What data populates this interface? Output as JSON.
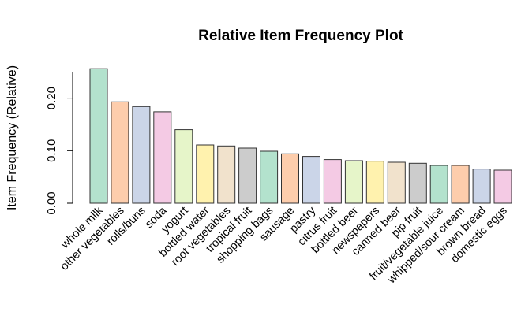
{
  "chart_data": {
    "type": "bar",
    "title": "Relative Item Frequency Plot",
    "xlabel": "",
    "ylabel": "Item Frequency (Relative)",
    "ylim": [
      0,
      0.25
    ],
    "yticks": [
      0.0,
      0.1,
      0.2
    ],
    "ytick_labels": [
      "0.00",
      "0.10",
      "0.20"
    ],
    "grid": false,
    "legend": "none",
    "categories": [
      "whole milk",
      "other vegetables",
      "rolls/buns",
      "soda",
      "yogurt",
      "bottled water",
      "root vegetables",
      "tropical fruit",
      "shopping bags",
      "sausage",
      "pastry",
      "citrus fruit",
      "bottled beer",
      "newspapers",
      "canned beer",
      "pip fruit",
      "fruit/vegetable juice",
      "whipped/sour cream",
      "brown bread",
      "domestic eggs"
    ],
    "values": [
      0.256,
      0.193,
      0.184,
      0.174,
      0.14,
      0.111,
      0.109,
      0.105,
      0.099,
      0.094,
      0.089,
      0.083,
      0.081,
      0.08,
      0.078,
      0.076,
      0.072,
      0.072,
      0.065,
      0.063
    ],
    "colors": [
      "#b3e2cd",
      "#fdcdac",
      "#cbd5e8",
      "#f4cae4",
      "#e6f5c9",
      "#fff2ae",
      "#f1e2cc",
      "#cccccc"
    ],
    "bar_stroke": "#333333"
  }
}
